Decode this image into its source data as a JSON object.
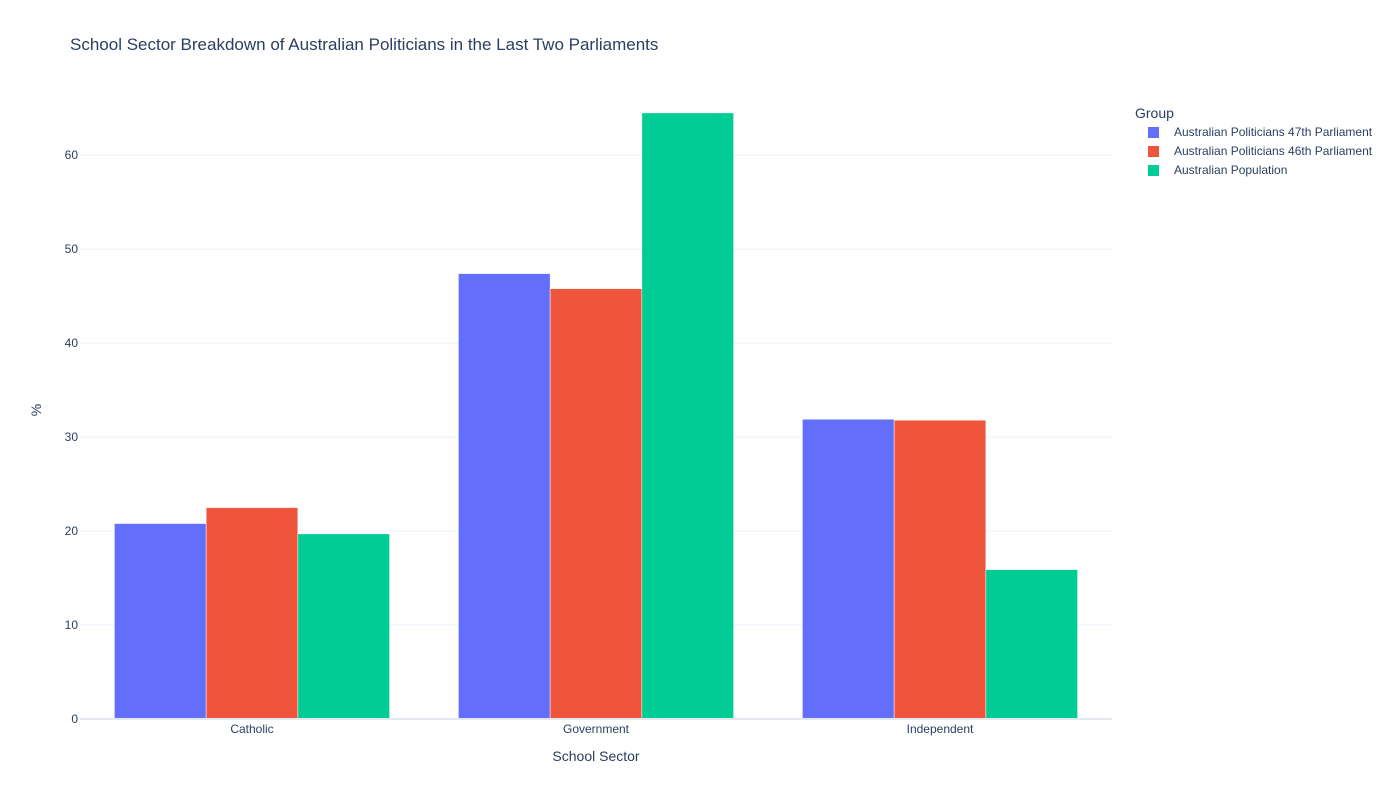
{
  "chart_data": {
    "type": "bar",
    "title": "School Sector Breakdown of Australian Politicians in the Last Two Parliaments",
    "xlabel": "School Sector",
    "ylabel": "%",
    "categories": [
      "Catholic",
      "Government",
      "Independent"
    ],
    "ylim": [
      0,
      68
    ],
    "yticks": [
      0,
      10,
      20,
      30,
      40,
      50,
      60
    ],
    "grid": true,
    "legend": {
      "title": "Group",
      "placement": "top-right outside"
    },
    "series": [
      {
        "name": "Australian Politicians 47th Parliament",
        "color": "#636efa",
        "values": [
          20.8,
          47.4,
          31.9
        ]
      },
      {
        "name": "Australian Politicians 46th Parliament",
        "color": "#ef553b",
        "values": [
          22.5,
          45.8,
          31.8
        ]
      },
      {
        "name": "Australian Population",
        "color": "#00cc96",
        "values": [
          19.7,
          64.5,
          15.9
        ]
      }
    ]
  }
}
